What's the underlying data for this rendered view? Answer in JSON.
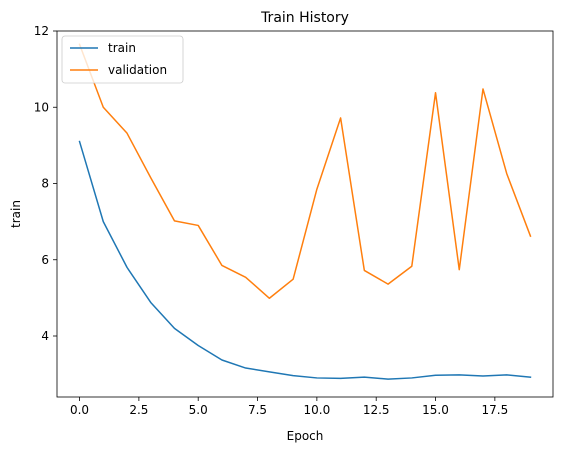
{
  "chart_data": {
    "type": "line",
    "title": "Train History",
    "xlabel": "Epoch",
    "ylabel": "train",
    "xlim": [
      -0.95,
      19.95
    ],
    "ylim": [
      2.4,
      12
    ],
    "xticks": [
      0.0,
      2.5,
      5.0,
      7.5,
      10.0,
      12.5,
      15.0,
      17.5
    ],
    "xtick_labels": [
      "0.0",
      "2.5",
      "5.0",
      "7.5",
      "10.0",
      "12.5",
      "15.0",
      "17.5"
    ],
    "yticks": [
      4,
      6,
      8,
      10,
      12
    ],
    "ytick_labels": [
      "4",
      "6",
      "8",
      "10",
      "12"
    ],
    "grid": false,
    "legend_position": "top-left",
    "x": [
      0,
      1,
      2,
      3,
      4,
      5,
      6,
      7,
      8,
      9,
      10,
      11,
      12,
      13,
      14,
      15,
      16,
      17,
      18,
      19
    ],
    "series": [
      {
        "name": "train",
        "color": "#1f77b4",
        "values": [
          9.1,
          7.0,
          5.8,
          4.88,
          4.2,
          3.75,
          3.37,
          3.16,
          3.06,
          2.96,
          2.9,
          2.89,
          2.92,
          2.87,
          2.9,
          2.97,
          2.98,
          2.95,
          2.98,
          2.92
        ]
      },
      {
        "name": "validation",
        "color": "#ff7f0e",
        "values": [
          11.65,
          10.0,
          9.32,
          8.15,
          7.02,
          6.9,
          5.85,
          5.54,
          4.99,
          5.49,
          7.85,
          9.72,
          5.72,
          5.36,
          5.83,
          10.38,
          5.74,
          10.48,
          8.26,
          6.62
        ]
      }
    ]
  }
}
